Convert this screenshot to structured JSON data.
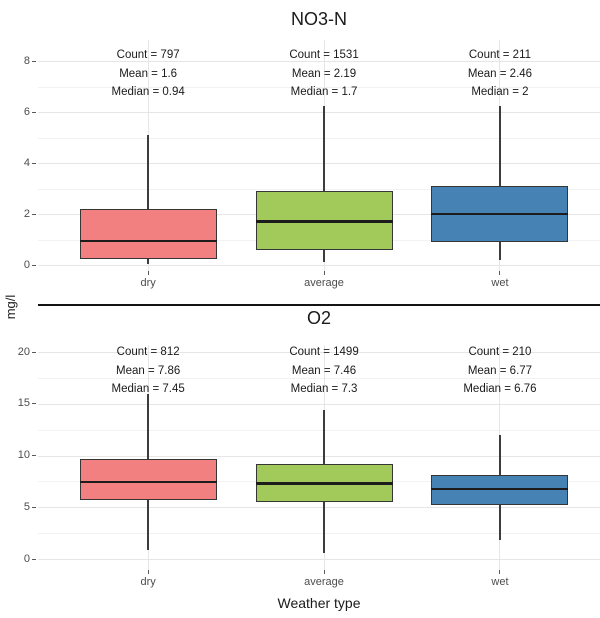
{
  "figure": {
    "ylab": "mg/l",
    "xlab": "Weather type",
    "colors": {
      "dry_fill": "#F28080",
      "average_fill": "#A2CA5A",
      "wet_fill": "#4682B4",
      "box_border": "#363636",
      "median_line": "#1c1c1c",
      "grid_major": "#e6e6e6",
      "grid_minor": "#f2f2f2",
      "axis_text": "#4d4d4d"
    }
  },
  "chart_data": [
    {
      "type": "boxplot",
      "title": "NO3-N",
      "categories": [
        "dry",
        "average",
        "wet"
      ],
      "ylim": [
        0,
        8.8
      ],
      "yticks": [
        0,
        2,
        4,
        6,
        8
      ],
      "grid": "on",
      "series": [
        {
          "category": "dry",
          "count": 797,
          "mean": 1.6,
          "median": 0.94,
          "q1": 0.22,
          "q3": 2.2,
          "whisker_low": 0.05,
          "whisker_high": 5.1
        },
        {
          "category": "average",
          "count": 1531,
          "mean": 2.19,
          "median": 1.7,
          "q1": 0.6,
          "q3": 2.9,
          "whisker_low": 0.1,
          "whisker_high": 6.25
        },
        {
          "category": "wet",
          "count": 211,
          "mean": 2.46,
          "median": 2,
          "q1": 0.9,
          "q3": 3.1,
          "whisker_low": 0.18,
          "whisker_high": 6.25
        }
      ],
      "annotations": [
        [
          "Count = 797",
          "Mean = 1.6",
          "Median = 0.94"
        ],
        [
          "Count = 1531",
          "Mean = 2.19",
          "Median = 1.7"
        ],
        [
          "Count = 211",
          "Mean = 2.46",
          "Median = 2"
        ]
      ]
    },
    {
      "type": "boxplot",
      "title": "O2",
      "categories": [
        "dry",
        "average",
        "wet"
      ],
      "ylim": [
        0,
        20.8
      ],
      "yticks": [
        0,
        5,
        10,
        15,
        20
      ],
      "grid": "on",
      "series": [
        {
          "category": "dry",
          "count": 812,
          "mean": 7.86,
          "median": 7.45,
          "q1": 5.7,
          "q3": 9.7,
          "whisker_low": 0.9,
          "whisker_high": 15.9
        },
        {
          "category": "average",
          "count": 1499,
          "mean": 7.46,
          "median": 7.3,
          "q1": 5.5,
          "q3": 9.2,
          "whisker_low": 0.6,
          "whisker_high": 14.4
        },
        {
          "category": "wet",
          "count": 210,
          "mean": 6.77,
          "median": 6.76,
          "q1": 5.2,
          "q3": 8.1,
          "whisker_low": 1.8,
          "whisker_high": 12.0
        }
      ],
      "annotations": [
        [
          "Count = 812",
          "Mean = 7.86",
          "Median = 7.45"
        ],
        [
          "Count = 1499",
          "Mean = 7.46",
          "Median = 7.3"
        ],
        [
          "Count = 210",
          "Mean = 6.77",
          "Median = 6.76"
        ]
      ]
    }
  ]
}
